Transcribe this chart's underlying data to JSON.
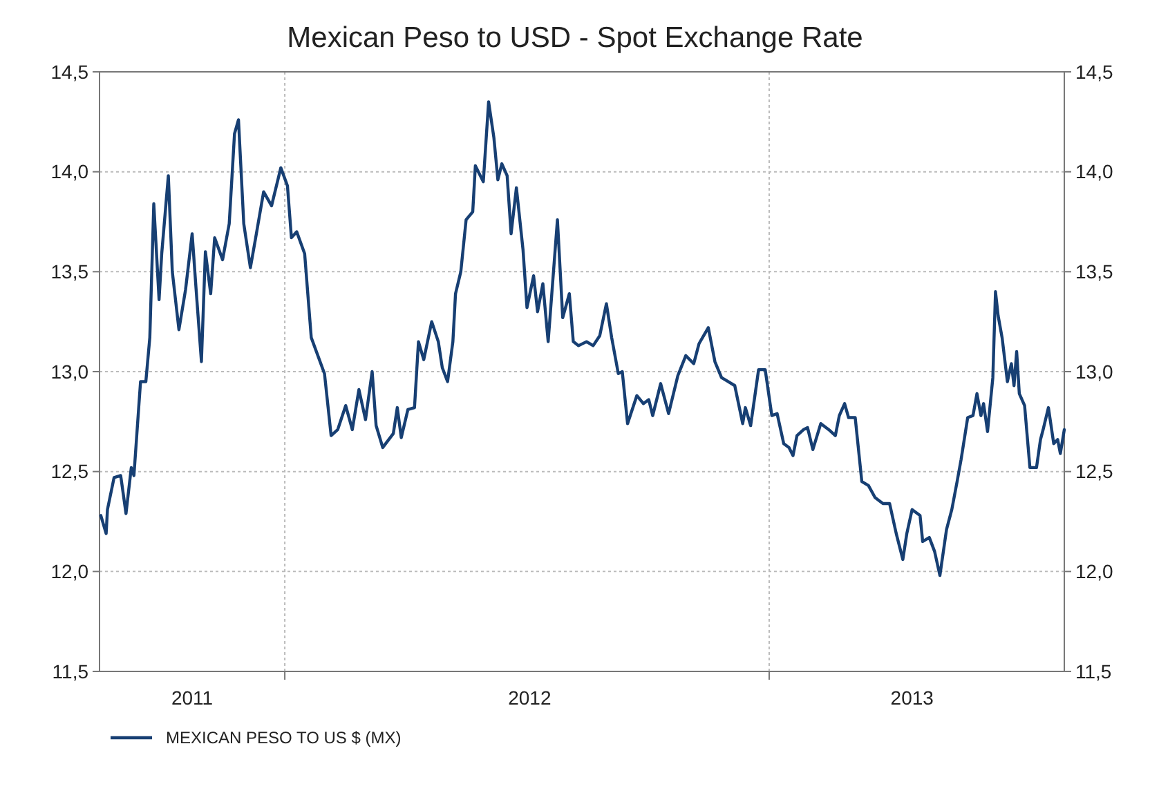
{
  "chart_data": {
    "type": "line",
    "title": "Mexican Peso to USD - Spot Exchange Rate",
    "xlim": [
      "2011-08-14",
      "2013-08-12"
    ],
    "xticks": [
      {
        "value": "2011-10-23",
        "label": "2011"
      },
      {
        "value": "2012-01-01",
        "label": null
      },
      {
        "value": "2012-07-04",
        "label": "2012"
      },
      {
        "value": "2013-01-01",
        "label": null
      },
      {
        "value": "2013-04-19",
        "label": "2013"
      }
    ],
    "ylim": [
      11.5,
      14.5
    ],
    "yticks": [
      {
        "value": 11.5,
        "label": "11,5"
      },
      {
        "value": 12,
        "label": "12,0"
      },
      {
        "value": 12.5,
        "label": "12,5"
      },
      {
        "value": 13,
        "label": "13,0"
      },
      {
        "value": 13.5,
        "label": "13,5"
      },
      {
        "value": 14,
        "label": "14,0"
      },
      {
        "value": 14.5,
        "label": "14,5"
      }
    ],
    "y2lim": [
      11.5,
      14.5
    ],
    "y2ticks": [
      {
        "value": 11.5,
        "label": "11,5"
      },
      {
        "value": 12,
        "label": "12,0"
      },
      {
        "value": 12.5,
        "label": "12,5"
      },
      {
        "value": 13,
        "label": "13,0"
      },
      {
        "value": 13.5,
        "label": "13,5"
      },
      {
        "value": 14,
        "label": "14,0"
      },
      {
        "value": 14.5,
        "label": "14,5"
      }
    ],
    "grid": true,
    "legend": "bottom left",
    "marker": "none",
    "line_style": "solid",
    "series": [
      {
        "name": "MEXICAN PESO TO US $ (MX)",
        "color": "#173f73",
        "x": [
          "2011-08-15",
          "2011-08-19",
          "2011-08-20",
          "2011-08-25",
          "2011-08-30",
          "2011-09-03",
          "2011-09-07",
          "2011-09-09",
          "2011-09-14",
          "2011-09-18",
          "2011-09-21",
          "2011-09-24",
          "2011-09-28",
          "2011-09-30",
          "2011-10-05",
          "2011-10-08",
          "2011-10-13",
          "2011-10-18",
          "2011-10-23",
          "2011-10-26",
          "2011-10-30",
          "2011-11-02",
          "2011-11-06",
          "2011-11-09",
          "2011-11-15",
          "2011-11-20",
          "2011-11-24",
          "2011-11-27",
          "2011-12-01",
          "2011-12-06",
          "2011-12-10",
          "2011-12-16",
          "2011-12-22",
          "2011-12-29",
          "2012-01-03",
          "2012-01-06",
          "2012-01-10",
          "2012-01-16",
          "2012-01-21",
          "2012-01-31",
          "2012-02-05",
          "2012-02-10",
          "2012-02-16",
          "2012-02-21",
          "2012-02-26",
          "2012-03-02",
          "2012-03-07",
          "2012-03-10",
          "2012-03-15",
          "2012-03-23",
          "2012-03-26",
          "2012-03-29",
          "2012-04-03",
          "2012-04-08",
          "2012-04-11",
          "2012-04-15",
          "2012-04-21",
          "2012-04-26",
          "2012-04-29",
          "2012-05-03",
          "2012-05-07",
          "2012-05-09",
          "2012-05-13",
          "2012-05-17",
          "2012-05-22",
          "2012-05-24",
          "2012-05-30",
          "2012-06-03",
          "2012-06-07",
          "2012-06-10",
          "2012-06-13",
          "2012-06-17",
          "2012-06-20",
          "2012-06-24",
          "2012-06-29",
          "2012-07-02",
          "2012-07-07",
          "2012-07-10",
          "2012-07-14",
          "2012-07-18",
          "2012-07-25",
          "2012-07-29",
          "2012-08-03",
          "2012-08-06",
          "2012-08-10",
          "2012-08-16",
          "2012-08-21",
          "2012-08-26",
          "2012-08-31",
          "2012-09-04",
          "2012-09-09",
          "2012-09-12",
          "2012-09-16",
          "2012-09-23",
          "2012-09-28",
          "2012-10-02",
          "2012-10-05",
          "2012-10-11",
          "2012-10-17",
          "2012-10-24",
          "2012-10-30",
          "2012-11-05",
          "2012-11-09",
          "2012-11-16",
          "2012-11-21",
          "2012-11-26",
          "2012-12-01",
          "2012-12-06",
          "2012-12-12",
          "2012-12-14",
          "2012-12-18",
          "2012-12-24",
          "2012-12-29",
          "2013-01-03",
          "2013-01-07",
          "2013-01-12",
          "2013-01-16",
          "2013-01-19",
          "2013-01-22",
          "2013-01-27",
          "2013-01-30",
          "2013-02-03",
          "2013-02-09",
          "2013-02-15",
          "2013-02-20",
          "2013-02-23",
          "2013-02-27",
          "2013-03-02",
          "2013-03-07",
          "2013-03-12",
          "2013-03-17",
          "2013-03-22",
          "2013-03-28",
          "2013-04-02",
          "2013-04-07",
          "2013-04-12",
          "2013-04-15",
          "2013-04-19",
          "2013-04-25",
          "2013-04-27",
          "2013-05-02",
          "2013-05-06",
          "2013-05-10",
          "2013-05-15",
          "2013-05-19",
          "2013-05-23",
          "2013-05-26",
          "2013-05-31",
          "2013-06-04",
          "2013-06-07",
          "2013-06-10",
          "2013-06-12",
          "2013-06-15",
          "2013-06-19",
          "2013-06-21",
          "2013-06-23",
          "2013-06-26",
          "2013-06-30",
          "2013-07-03",
          "2013-07-05",
          "2013-07-07",
          "2013-07-09",
          "2013-07-13",
          "2013-07-17",
          "2013-07-22",
          "2013-07-25",
          "2013-07-27",
          "2013-07-31",
          "2013-08-04",
          "2013-08-07",
          "2013-08-09",
          "2013-08-12"
        ],
        "values": [
          12.28,
          12.19,
          12.31,
          12.47,
          12.48,
          12.29,
          12.52,
          12.48,
          12.95,
          12.95,
          13.17,
          13.84,
          13.36,
          13.59,
          13.98,
          13.5,
          13.21,
          13.41,
          13.69,
          13.41,
          13.05,
          13.6,
          13.39,
          13.67,
          13.56,
          13.74,
          14.19,
          14.26,
          13.74,
          13.52,
          13.67,
          13.9,
          13.83,
          14.02,
          13.93,
          13.67,
          13.7,
          13.59,
          13.17,
          12.99,
          12.68,
          12.71,
          12.83,
          12.71,
          12.91,
          12.76,
          13.0,
          12.73,
          12.62,
          12.69,
          12.82,
          12.67,
          12.81,
          12.82,
          13.15,
          13.06,
          13.25,
          13.15,
          13.02,
          12.95,
          13.15,
          13.39,
          13.5,
          13.76,
          13.8,
          14.03,
          13.95,
          14.35,
          14.17,
          13.96,
          14.04,
          13.98,
          13.69,
          13.92,
          13.61,
          13.32,
          13.48,
          13.3,
          13.44,
          13.15,
          13.76,
          13.27,
          13.39,
          13.15,
          13.13,
          13.15,
          13.13,
          13.18,
          13.34,
          13.17,
          12.99,
          13.0,
          12.74,
          12.88,
          12.84,
          12.86,
          12.78,
          12.94,
          12.79,
          12.98,
          13.08,
          13.04,
          13.14,
          13.22,
          13.05,
          12.97,
          12.95,
          12.93,
          12.74,
          12.82,
          12.73,
          13.01,
          13.01,
          12.78,
          12.79,
          12.64,
          12.62,
          12.58,
          12.68,
          12.71,
          12.72,
          12.61,
          12.74,
          12.71,
          12.68,
          12.78,
          12.84,
          12.77,
          12.77,
          12.45,
          12.43,
          12.37,
          12.34,
          12.34,
          12.19,
          12.06,
          12.19,
          12.31,
          12.28,
          12.15,
          12.17,
          12.1,
          11.98,
          12.21,
          12.31,
          12.45,
          12.56,
          12.77,
          12.78,
          12.89,
          12.78,
          12.84,
          12.7,
          12.97,
          13.4,
          13.28,
          13.17,
          12.95,
          13.04,
          12.93,
          13.1,
          12.89,
          12.83,
          12.52,
          12.52,
          12.66,
          12.71,
          12.82,
          12.64,
          12.66,
          12.59,
          12.71
        ]
      }
    ]
  }
}
